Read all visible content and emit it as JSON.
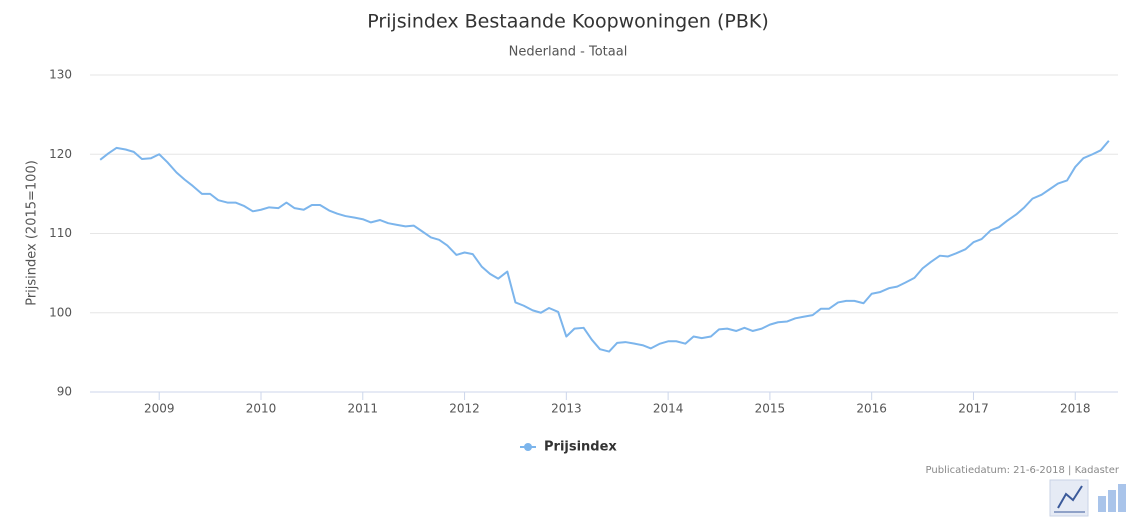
{
  "chart_data": {
    "type": "line",
    "title": "Prijsindex Bestaande Koopwoningen (PBK)",
    "subtitle": "Nederland - Totaal",
    "y_label": "Prijsindex (2015=100)",
    "credit": "Publicatiedatum: 21-6-2018 | Kadaster",
    "x": [
      2008.42,
      2008.5,
      2008.58,
      2008.67,
      2008.75,
      2008.83,
      2008.92,
      2009,
      2009.08,
      2009.17,
      2009.25,
      2009.33,
      2009.42,
      2009.5,
      2009.58,
      2009.67,
      2009.75,
      2009.83,
      2009.92,
      2010,
      2010.08,
      2010.17,
      2010.25,
      2010.33,
      2010.42,
      2010.5,
      2010.58,
      2010.67,
      2010.75,
      2010.83,
      2010.92,
      2011,
      2011.08,
      2011.17,
      2011.25,
      2011.33,
      2011.42,
      2011.5,
      2011.58,
      2011.67,
      2011.75,
      2011.83,
      2011.92,
      2012,
      2012.08,
      2012.17,
      2012.25,
      2012.33,
      2012.42,
      2012.5,
      2012.58,
      2012.67,
      2012.75,
      2012.83,
      2012.92,
      2013,
      2013.08,
      2013.17,
      2013.25,
      2013.33,
      2013.42,
      2013.5,
      2013.58,
      2013.67,
      2013.75,
      2013.83,
      2013.92,
      2014,
      2014.08,
      2014.17,
      2014.25,
      2014.33,
      2014.42,
      2014.5,
      2014.58,
      2014.67,
      2014.75,
      2014.83,
      2014.92,
      2015,
      2015.08,
      2015.17,
      2015.25,
      2015.33,
      2015.42,
      2015.5,
      2015.58,
      2015.67,
      2015.75,
      2015.83,
      2015.92,
      2016,
      2016.08,
      2016.17,
      2016.25,
      2016.33,
      2016.42,
      2016.5,
      2016.58,
      2016.67,
      2016.75,
      2016.83,
      2016.92,
      2017,
      2017.08,
      2017.17,
      2017.25,
      2017.33,
      2017.42,
      2017.5,
      2017.58,
      2017.67,
      2017.75,
      2017.83,
      2017.92,
      2018,
      2018.08,
      2018.17,
      2018.25,
      2018.33
    ],
    "series": [
      {
        "name": "Prijsindex",
        "color": "#7cb5ec",
        "values": [
          119.3,
          120.1,
          120.8,
          120.6,
          120.3,
          119.4,
          119.5,
          120.0,
          119.0,
          117.7,
          116.8,
          116.0,
          115.0,
          115.0,
          114.2,
          113.9,
          113.9,
          113.5,
          112.8,
          113.0,
          113.3,
          113.2,
          113.9,
          113.2,
          113.0,
          113.6,
          113.6,
          112.9,
          112.5,
          112.2,
          112.0,
          111.8,
          111.4,
          111.7,
          111.3,
          111.1,
          110.9,
          111.0,
          110.3,
          109.5,
          109.2,
          108.5,
          107.3,
          107.6,
          107.4,
          105.8,
          104.9,
          104.3,
          105.2,
          101.3,
          100.9,
          100.3,
          100.0,
          100.6,
          100.1,
          97.0,
          98.0,
          98.1,
          96.6,
          95.4,
          95.1,
          96.2,
          96.3,
          96.1,
          95.9,
          95.5,
          96.1,
          96.4,
          96.4,
          96.1,
          97.0,
          96.8,
          97.0,
          97.9,
          98.0,
          97.7,
          98.1,
          97.7,
          98.0,
          98.5,
          98.8,
          98.9,
          99.3,
          99.5,
          99.7,
          100.5,
          100.5,
          101.3,
          101.5,
          101.5,
          101.2,
          102.4,
          102.6,
          103.1,
          103.3,
          103.8,
          104.4,
          105.6,
          106.4,
          107.2,
          107.1,
          107.5,
          108.0,
          108.9,
          109.3,
          110.4,
          110.8,
          111.6,
          112.4,
          113.3,
          114.4,
          114.9,
          115.6,
          116.3,
          116.7,
          118.4,
          119.5,
          120.0,
          120.5,
          121.7
        ]
      }
    ],
    "xlim": [
      2008.32,
      2018.42
    ],
    "xticks": [
      2009,
      2010,
      2011,
      2012,
      2013,
      2014,
      2015,
      2016,
      2017,
      2018
    ],
    "ylim": [
      90,
      130
    ],
    "yticks": [
      90,
      100,
      110,
      120,
      130
    ],
    "grid": true
  }
}
